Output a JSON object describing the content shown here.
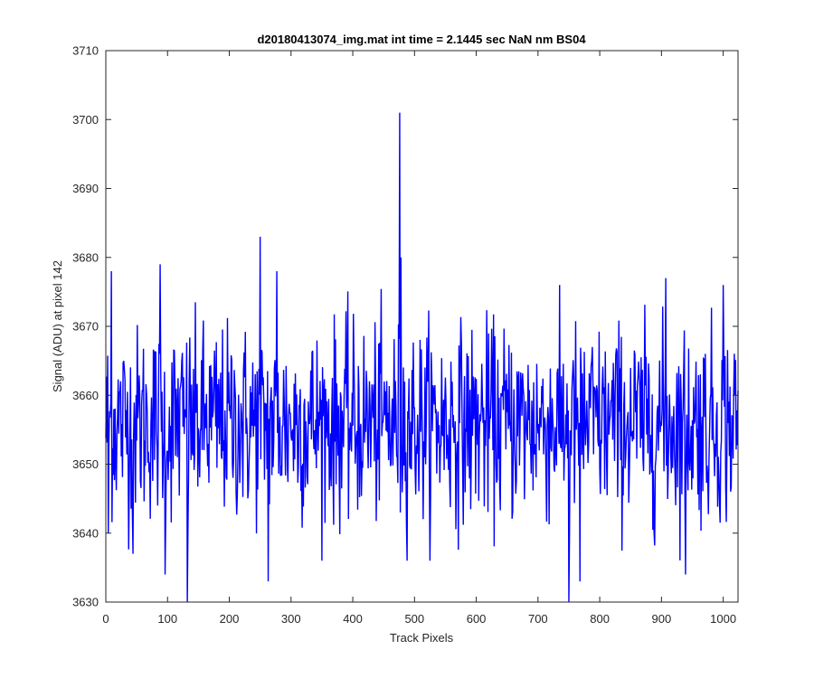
{
  "chart_data": {
    "type": "line",
    "title": "d20180413074_img.mat int time = 2.1445 sec  NaN nm BS04",
    "xlabel": "Track Pixels",
    "ylabel": "Signal (ADU) at pixel 142",
    "xlim": [
      0,
      1024
    ],
    "ylim": [
      3630,
      3710
    ],
    "xticks": [
      0,
      100,
      200,
      300,
      400,
      500,
      600,
      700,
      800,
      900,
      1000
    ],
    "yticks": [
      3630,
      3640,
      3650,
      3660,
      3670,
      3680,
      3690,
      3700,
      3710
    ],
    "xtick_labels": [
      "0",
      "100",
      "200",
      "300",
      "400",
      "500",
      "600",
      "700",
      "800",
      "900",
      "1000"
    ],
    "ytick_labels": [
      "3630",
      "3640",
      "3650",
      "3660",
      "3670",
      "3680",
      "3690",
      "3700",
      "3710"
    ],
    "grid": false,
    "box": true,
    "series": [
      {
        "color": "#0000ff",
        "baseline_mean": 3656,
        "spikes": [
          {
            "x": 476,
            "y": 3701
          },
          {
            "x": 477,
            "y": 3643
          },
          {
            "x": 478,
            "y": 3680
          },
          {
            "x": 250,
            "y": 3683
          },
          {
            "x": 9,
            "y": 3678
          },
          {
            "x": 88,
            "y": 3679
          },
          {
            "x": 132,
            "y": 3630
          },
          {
            "x": 133,
            "y": 3640
          },
          {
            "x": 750,
            "y": 3630
          },
          {
            "x": 751,
            "y": 3640
          },
          {
            "x": 96,
            "y": 3634
          },
          {
            "x": 939,
            "y": 3634
          },
          {
            "x": 277,
            "y": 3678
          },
          {
            "x": 907,
            "y": 3677
          },
          {
            "x": 1000,
            "y": 3676
          },
          {
            "x": 263,
            "y": 3633
          },
          {
            "x": 768,
            "y": 3633
          },
          {
            "x": 44,
            "y": 3637
          },
          {
            "x": 4,
            "y": 3640
          }
        ]
      }
    ]
  }
}
